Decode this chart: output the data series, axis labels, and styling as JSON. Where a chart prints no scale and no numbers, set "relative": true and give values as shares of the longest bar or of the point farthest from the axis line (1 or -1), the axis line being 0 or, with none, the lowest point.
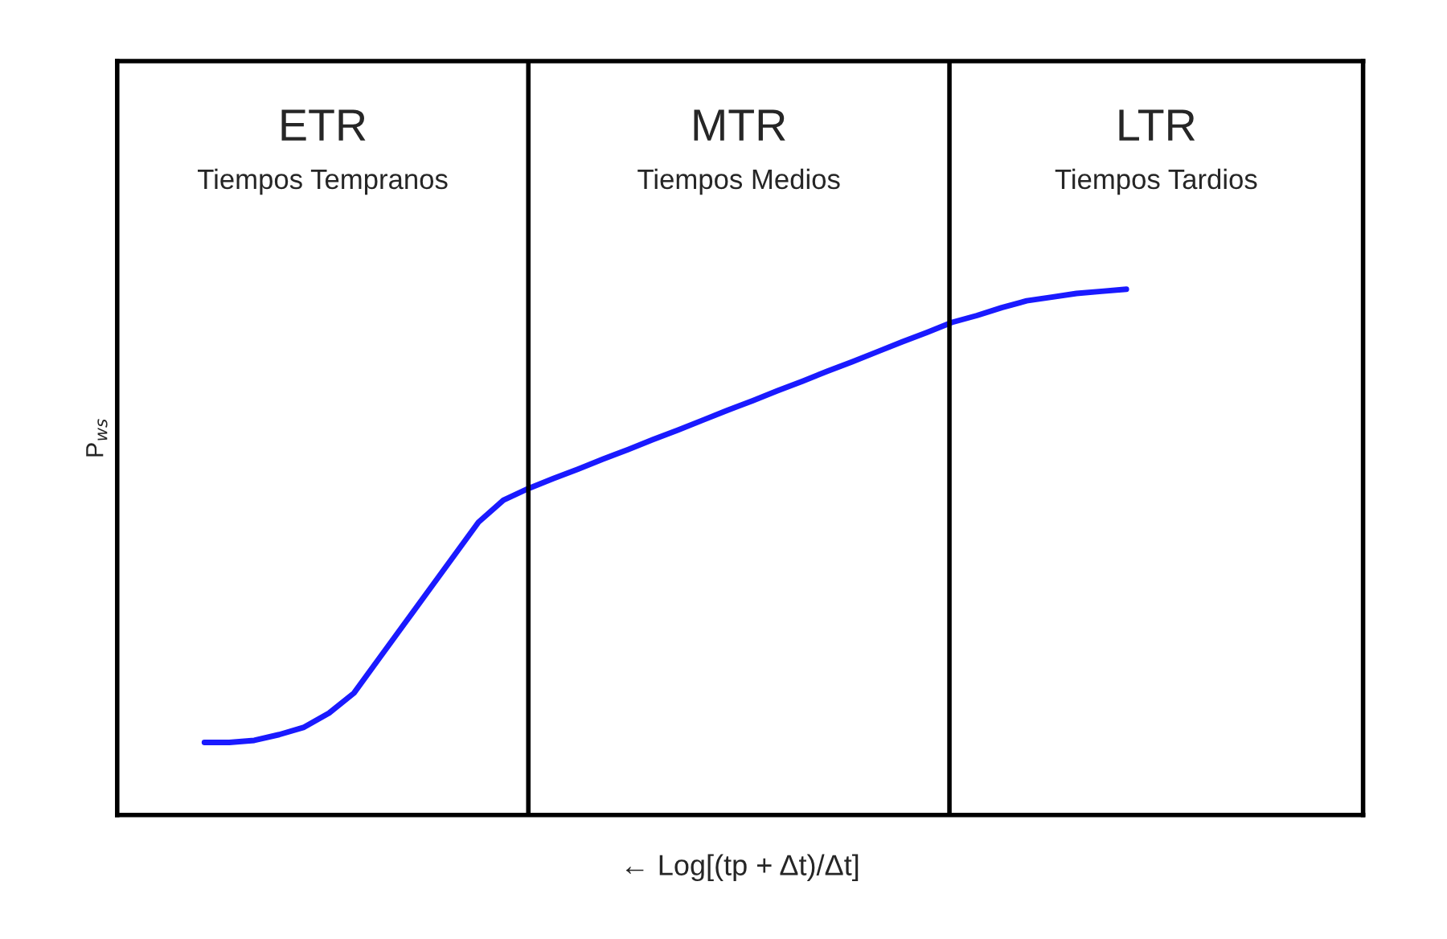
{
  "chart_data": {
    "type": "line",
    "relative": true,
    "xlabel": "← Log[(tp + Δt)/Δt]",
    "ylabel": "P$_{ws}$",
    "categories": [
      null,
      null,
      null,
      null,
      null,
      null,
      null,
      null,
      null,
      null,
      null,
      null,
      null,
      null,
      null,
      null,
      null,
      null,
      null,
      null,
      null,
      null,
      null,
      null,
      null,
      null,
      null,
      null,
      null,
      null,
      null,
      null,
      null,
      null,
      null,
      null,
      null,
      null,
      null,
      null,
      null,
      null,
      null,
      null,
      null,
      null,
      null,
      null,
      null,
      null
    ],
    "series": [
      {
        "color": "#1a1aff",
        "values": [
          null,
          null,
          null,
          0.138,
          0.138,
          0.142,
          0.153,
          0.167,
          0.194,
          0.232,
          0.297,
          0.362,
          0.427,
          0.492,
          0.557,
          0.599,
          0.621,
          0.64,
          0.658,
          0.677,
          0.695,
          0.714,
          0.732,
          0.751,
          0.77,
          0.788,
          0.807,
          0.825,
          0.844,
          0.862,
          0.881,
          0.9,
          0.918,
          0.937,
          0.95,
          0.965,
          0.978,
          0.985,
          0.992,
          0.996,
          1.0,
          null,
          null,
          null,
          null,
          null,
          null,
          null,
          null,
          null
        ]
      }
    ],
    "annotations": [
      "ETR",
      "Tiempos Tempranos",
      "MTR",
      "Tiempos Medios",
      "LTR",
      "Tiempos Tardios"
    ],
    "grid": false,
    "legend": false,
    "marker": "none",
    "line_style": "solid"
  }
}
